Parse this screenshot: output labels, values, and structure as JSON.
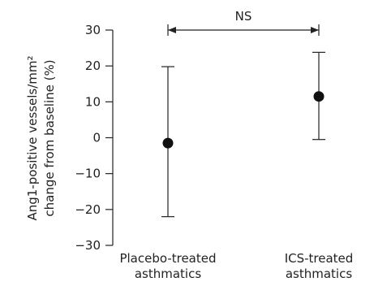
{
  "chart_data": {
    "type": "scatter",
    "ylabel_line1": "Ang1-positive vessels/mm²",
    "ylabel_line2": "change from baseline (%)",
    "ylim": [
      -30,
      30
    ],
    "yticks": [
      30,
      20,
      10,
      0,
      -10,
      -20,
      -30
    ],
    "groups": [
      {
        "label_line1": "Placebo-treated",
        "label_line2": "asthmatics",
        "mean": -1.5,
        "lower": -22,
        "upper": 19.8
      },
      {
        "label_line1": "ICS-treated",
        "label_line2": "asthmatics",
        "mean": 11.5,
        "lower": -0.5,
        "upper": 23.8
      }
    ],
    "comparison": {
      "label": "NS",
      "from_group": 0,
      "to_group": 1,
      "y": 30
    },
    "colors": {
      "ink": "#222222",
      "marker": "#111111"
    }
  }
}
